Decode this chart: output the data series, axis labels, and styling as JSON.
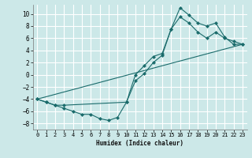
{
  "xlabel": "Humidex (Indice chaleur)",
  "bg_color": "#cce8e8",
  "grid_color": "#ffffff",
  "line_color": "#1a6b6b",
  "xlim": [
    -0.5,
    23.5
  ],
  "ylim": [
    -9,
    11.5
  ],
  "yticks": [
    -8,
    -6,
    -4,
    -2,
    0,
    2,
    4,
    6,
    8,
    10
  ],
  "xticks": [
    0,
    1,
    2,
    3,
    4,
    5,
    6,
    7,
    8,
    9,
    10,
    11,
    12,
    13,
    14,
    15,
    16,
    17,
    18,
    19,
    20,
    21,
    22,
    23
  ],
  "line1_x": [
    0,
    1,
    2,
    3,
    4,
    5,
    6,
    7,
    8,
    9,
    10,
    11,
    12,
    13,
    14,
    15,
    16,
    17,
    18,
    19,
    20,
    21,
    22,
    23
  ],
  "line1_y": [
    -4,
    -4.5,
    -5,
    -5.5,
    -6,
    -6.5,
    -6.5,
    -7.2,
    -7.5,
    -7,
    -4.5,
    -1,
    0.2,
    2,
    3.2,
    7.5,
    11,
    9.8,
    8.5,
    8,
    8.5,
    6.2,
    5,
    5
  ],
  "line2_x": [
    0,
    1,
    2,
    3,
    10,
    11,
    12,
    13,
    14,
    15,
    16,
    17,
    18,
    19,
    20,
    21,
    22,
    23
  ],
  "line2_y": [
    -4,
    -4.5,
    -5,
    -5,
    -4.5,
    0,
    1.5,
    3,
    3.5,
    7.5,
    9.5,
    8.5,
    7,
    6,
    7,
    6,
    5.5,
    5
  ],
  "line3_x": [
    0,
    23
  ],
  "line3_y": [
    -4,
    5
  ]
}
